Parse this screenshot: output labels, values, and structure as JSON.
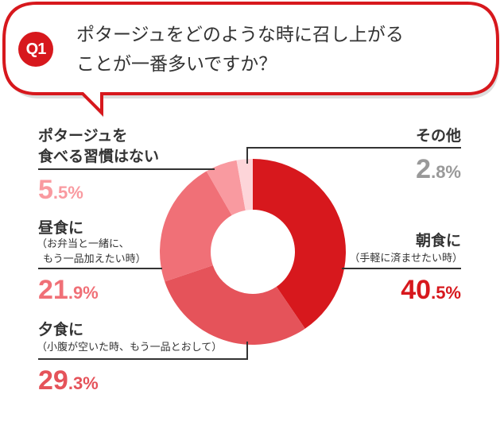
{
  "question": {
    "badge": "Q1",
    "line1": "ポタージュをどのような時に召し上がる",
    "line2": "ことが一番多いですか？"
  },
  "chart_data": {
    "type": "pie",
    "style": "donut",
    "start": "top, clockwise",
    "slices": [
      {
        "label": "朝食に",
        "sub": "（手軽に済ませたい時）",
        "value": 40.5,
        "int": "40",
        "dec": ".5%",
        "color": "#d7181d"
      },
      {
        "label": "夕食に",
        "sub": "（小腹が空いた時、もう一品とおして）",
        "value": 29.3,
        "int": "29",
        "dec": ".3%",
        "color": "#e5535a"
      },
      {
        "label": "昼食に",
        "sub": "（お弁当と一緒に、",
        "sub2": "もう一品加えたい時）",
        "value": 21.9,
        "int": "21",
        "dec": ".9%",
        "color": "#f07077"
      },
      {
        "label": "ポタージュを",
        "label2": "食べる習慣はない",
        "value": 5.5,
        "int": "5",
        "dec": ".5%",
        "color": "#f99aa0"
      },
      {
        "label": "その他",
        "value": 2.8,
        "int": "2",
        "dec": ".8%",
        "color": "#fdd5d9"
      }
    ],
    "other_pct_color": "#999999"
  }
}
